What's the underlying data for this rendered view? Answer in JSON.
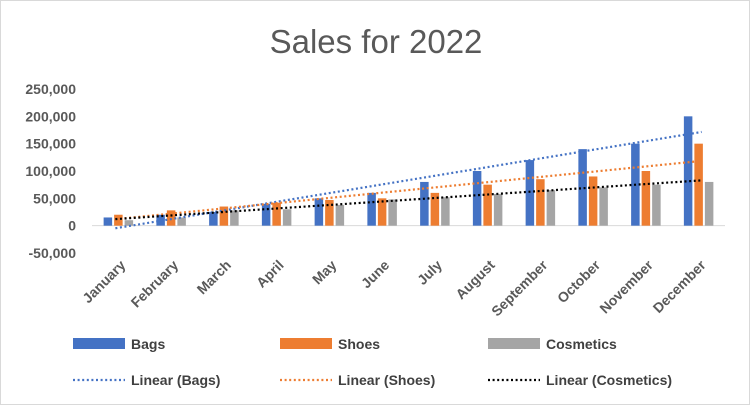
{
  "chart_data": {
    "type": "bar",
    "title": "Sales for 2022",
    "xlabel": "",
    "ylabel": "",
    "ylim": [
      -50000,
      250000
    ],
    "yticks": [
      -50000,
      0,
      50000,
      100000,
      150000,
      200000,
      250000
    ],
    "ytick_labels": [
      "-50,000",
      "0",
      "50,000",
      "100,000",
      "150,000",
      "200,000",
      "250,000"
    ],
    "grid": false,
    "legend_position": "bottom",
    "categories": [
      "January",
      "February",
      "March",
      "April",
      "May",
      "June",
      "July",
      "August",
      "September",
      "October",
      "November",
      "December"
    ],
    "series": [
      {
        "name": "Bags",
        "color": "#4472c4",
        "values": [
          15000,
          20000,
          25000,
          40000,
          50000,
          60000,
          80000,
          100000,
          120000,
          140000,
          150000,
          200000
        ]
      },
      {
        "name": "Shoes",
        "color": "#ed7d31",
        "values": [
          20000,
          28000,
          35000,
          42000,
          47000,
          50000,
          60000,
          75000,
          85000,
          90000,
          100000,
          150000
        ]
      },
      {
        "name": "Cosmetics",
        "color": "#a5a5a5",
        "values": [
          10000,
          15000,
          28000,
          30000,
          38000,
          48000,
          52000,
          58000,
          65000,
          70000,
          75000,
          80000
        ]
      }
    ],
    "trendlines": [
      {
        "name": "Linear (Bags)",
        "series": "Bags",
        "type": "linear",
        "color": "#4472c4",
        "style": "dotted"
      },
      {
        "name": "Linear (Shoes)",
        "series": "Shoes",
        "type": "linear",
        "color": "#ed7d31",
        "style": "dotted"
      },
      {
        "name": "Linear (Cosmetics)",
        "series": "Cosmetics",
        "type": "linear",
        "color": "#000000",
        "style": "dotted"
      }
    ]
  }
}
